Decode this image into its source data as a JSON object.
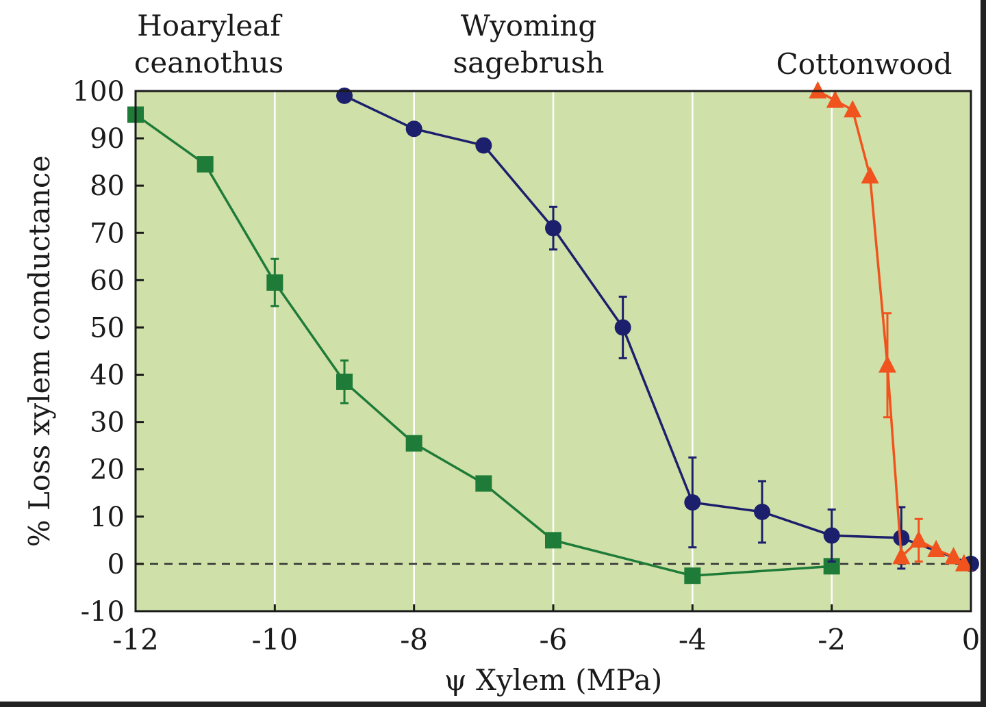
{
  "chart_data": {
    "type": "line",
    "title": "",
    "xlabel": "ψ Xylem (MPa)",
    "ylabel": "% Loss xylem conductance",
    "xlim": [
      -12,
      0
    ],
    "ylim": [
      -10,
      100
    ],
    "xticks": [
      -12,
      -10,
      -8,
      -6,
      -4,
      -2,
      0
    ],
    "yticks": [
      -10,
      0,
      10,
      20,
      30,
      40,
      50,
      60,
      70,
      80,
      90,
      100
    ],
    "grid": "vertical",
    "background": "#cfe0a8",
    "reference_line": {
      "y": 0,
      "style": "dashed"
    },
    "series": [
      {
        "name": "Hoaryleaf ceanothus",
        "label_lines": [
          "Hoaryleaf",
          "ceanothus"
        ],
        "color": "#1e7b38",
        "marker": "square",
        "points": [
          {
            "x": -12,
            "y": 95
          },
          {
            "x": -11,
            "y": 84.5
          },
          {
            "x": -10,
            "y": 59.5,
            "err": 5
          },
          {
            "x": -9,
            "y": 38.5,
            "err": 4.5
          },
          {
            "x": -8,
            "y": 25.5
          },
          {
            "x": -7,
            "y": 17
          },
          {
            "x": -6,
            "y": 5
          },
          {
            "x": -4,
            "y": -2.5
          },
          {
            "x": -2,
            "y": -0.5
          }
        ]
      },
      {
        "name": "Wyoming sagebrush",
        "label_lines": [
          "Wyoming",
          "sagebrush"
        ],
        "color": "#1c1f6b",
        "marker": "circle",
        "points": [
          {
            "x": -9,
            "y": 99
          },
          {
            "x": -8,
            "y": 92
          },
          {
            "x": -7,
            "y": 88.5
          },
          {
            "x": -6,
            "y": 71,
            "err": 4.5
          },
          {
            "x": -5,
            "y": 50,
            "err": 6.5
          },
          {
            "x": -4,
            "y": 13,
            "err": 9.5
          },
          {
            "x": -3,
            "y": 11,
            "err": 6.5
          },
          {
            "x": -2,
            "y": 6,
            "err": 5.5
          },
          {
            "x": -1,
            "y": 5.5,
            "err": 6.5
          },
          {
            "x": 0,
            "y": 0
          }
        ]
      },
      {
        "name": "Cottonwood",
        "label_lines": [
          "Cottonwood"
        ],
        "color": "#f0531d",
        "marker": "triangle",
        "points": [
          {
            "x": -2.2,
            "y": 100
          },
          {
            "x": -1.95,
            "y": 98
          },
          {
            "x": -1.7,
            "y": 96
          },
          {
            "x": -1.45,
            "y": 82
          },
          {
            "x": -1.2,
            "y": 42,
            "err": 11
          },
          {
            "x": -1.0,
            "y": 1.5
          },
          {
            "x": -0.75,
            "y": 5,
            "err": 4.5
          },
          {
            "x": -0.5,
            "y": 3
          },
          {
            "x": -0.25,
            "y": 1.5
          },
          {
            "x": -0.1,
            "y": 0
          }
        ]
      }
    ]
  }
}
